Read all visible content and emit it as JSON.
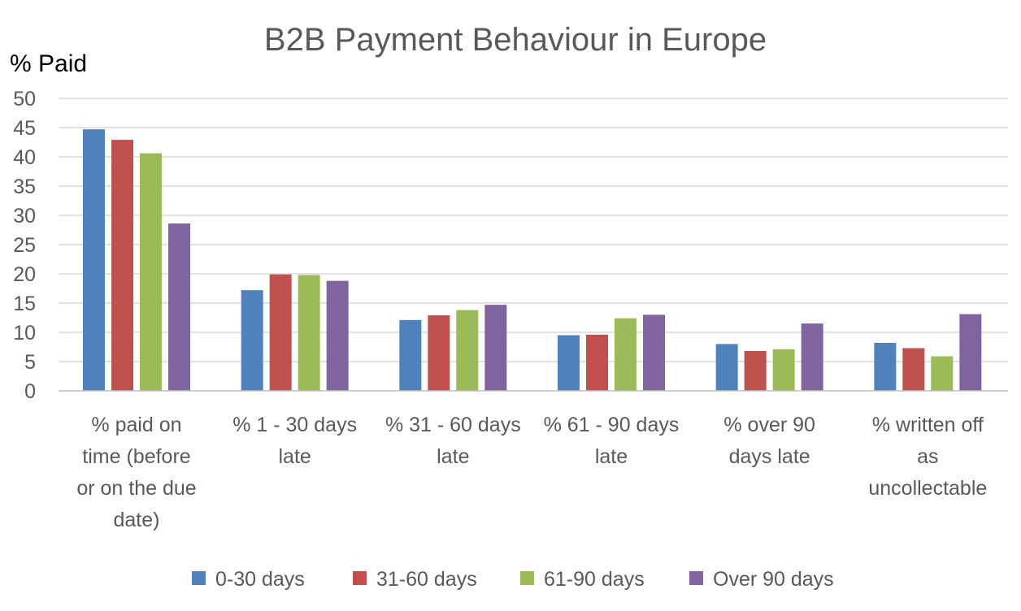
{
  "chart_data": {
    "type": "bar",
    "title": "B2B Payment Behaviour in Europe",
    "ylabel": "% Paid",
    "xlabel": "",
    "ylim": [
      0,
      50
    ],
    "yticks": [
      0,
      5,
      10,
      15,
      20,
      25,
      30,
      35,
      40,
      45,
      50
    ],
    "grid": true,
    "legend_position": "bottom",
    "categories": [
      [
        "% paid on",
        "time (before",
        "or on the due",
        "date)"
      ],
      [
        "% 1 - 30 days",
        "late"
      ],
      [
        "% 31 - 60 days",
        "late"
      ],
      [
        "% 61 - 90 days",
        "late"
      ],
      [
        "% over 90",
        "days late"
      ],
      [
        "% written off",
        "as",
        "uncollectable"
      ]
    ],
    "series": [
      {
        "name": "0-30 days",
        "color": "#4f81bd",
        "values": [
          44.7,
          17.2,
          12.1,
          9.5,
          8.0,
          8.2
        ]
      },
      {
        "name": "31-60 days",
        "color": "#c0504d",
        "values": [
          42.9,
          19.9,
          12.9,
          9.6,
          6.8,
          7.3
        ]
      },
      {
        "name": "61-90 days",
        "color": "#9bbb59",
        "values": [
          40.6,
          19.8,
          13.8,
          12.4,
          7.1,
          5.9
        ]
      },
      {
        "name": "Over 90 days",
        "color": "#8064a2",
        "values": [
          28.6,
          18.8,
          14.7,
          13.0,
          11.5,
          13.1
        ]
      }
    ]
  }
}
